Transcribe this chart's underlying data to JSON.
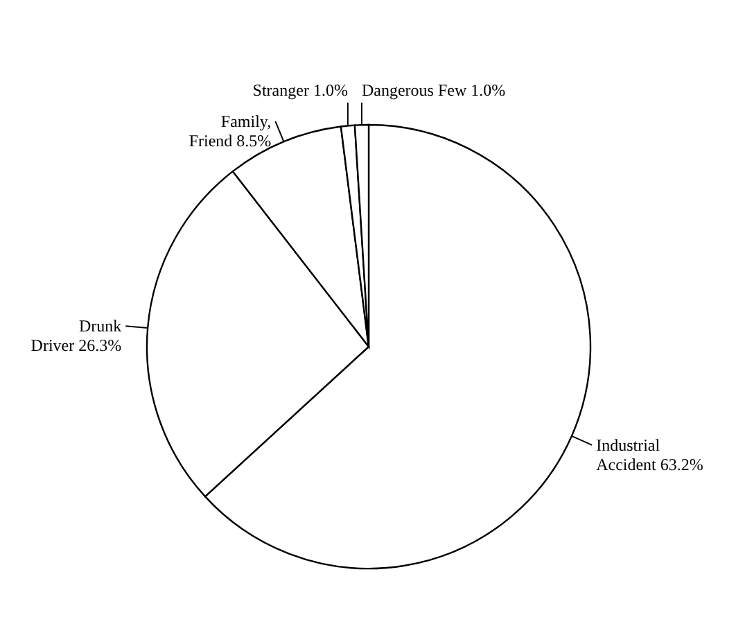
{
  "chart_data": {
    "type": "pie",
    "categories": [
      "Industrial\nAccident",
      "Drunk\nDriver",
      "Family,\nFriend",
      "Stranger",
      "Dangerous Few"
    ],
    "values": [
      63.2,
      26.3,
      8.5,
      1.0,
      1.0
    ],
    "value_labels": [
      "63.2%",
      "26.3%",
      "8.5%",
      "1.0%",
      "1.0%"
    ],
    "colors": [
      "#ffffff",
      "#ffffff",
      "#ffffff",
      "#ffffff",
      "#ffffff"
    ]
  }
}
